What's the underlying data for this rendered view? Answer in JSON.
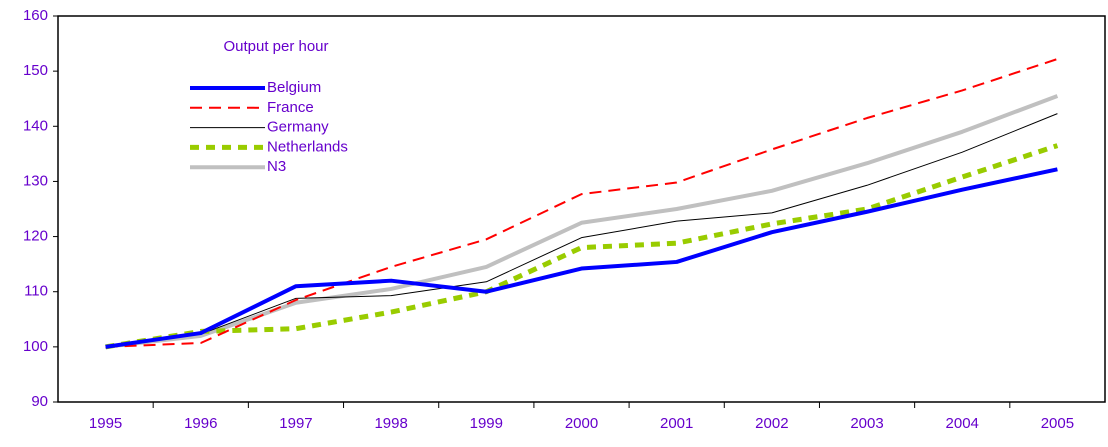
{
  "chart_data": {
    "type": "line",
    "legend_title": "Output per hour",
    "categories": [
      "1995",
      "1996",
      "1997",
      "1998",
      "1999",
      "2000",
      "2001",
      "2002",
      "2003",
      "2004",
      "2005"
    ],
    "series": [
      {
        "name": "Belgium",
        "color": "#0000ff",
        "values": [
          100,
          102.5,
          111,
          112,
          110,
          114.2,
          115.4,
          120.8,
          124.5,
          128.5,
          132.2
        ]
      },
      {
        "name": "France",
        "color": "#ff0000",
        "values": [
          100,
          100.7,
          108.5,
          114.5,
          119.5,
          127.7,
          129.8,
          135.8,
          141.5,
          146.5,
          152.2
        ]
      },
      {
        "name": "Germany",
        "color": "#000000",
        "values": [
          100,
          102.3,
          108.8,
          109.3,
          111.8,
          119.8,
          122.8,
          124.3,
          129.3,
          135.3,
          142.3
        ]
      },
      {
        "name": "Netherlands",
        "color": "#99cc00",
        "values": [
          100,
          102.8,
          103.3,
          106.3,
          110,
          118,
          118.8,
          122.3,
          125,
          130.8,
          136.5
        ]
      },
      {
        "name": "N3",
        "color": "#c0c0c0",
        "values": [
          100,
          102,
          108,
          110.5,
          114.5,
          122.5,
          125,
          128.3,
          133.3,
          139,
          145.5
        ]
      }
    ],
    "ylim": [
      90,
      160
    ],
    "yticks": [
      90,
      100,
      110,
      120,
      130,
      140,
      150,
      160
    ]
  }
}
